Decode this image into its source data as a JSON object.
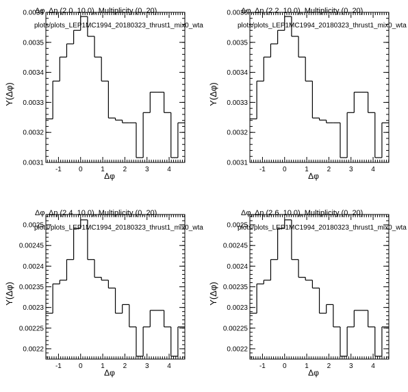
{
  "chart_data": [
    {
      "type": "step",
      "title": "Δφ, Δη (2.0, 10.0), Multiplicity (0, 20)",
      "subtitle": "plots/plots_LEP1MC1994_20180323_thrust1_mix0_wta",
      "xlabel": "Δφ",
      "ylabel": "Y(Δφ)",
      "xlim": [
        -1.57,
        4.71
      ],
      "ylim": [
        0.0031,
        0.0036
      ],
      "xticks": [
        -1,
        0,
        1,
        2,
        3,
        4
      ],
      "yticks": [
        0.0031,
        0.0032,
        0.0033,
        0.0034,
        0.0035,
        0.0036
      ],
      "ytick_labels": [
        "0.0031",
        "0.0032",
        "0.0033",
        "0.0034",
        "0.0035",
        "0.0036"
      ],
      "bin_edges": [
        -1.571,
        -1.257,
        -0.942,
        -0.628,
        -0.314,
        0.0,
        0.314,
        0.628,
        0.942,
        1.257,
        1.571,
        1.885,
        2.199,
        2.513,
        2.827,
        3.142,
        3.456,
        3.77,
        4.084,
        4.398,
        4.712
      ],
      "values": [
        0.003245,
        0.003371,
        0.003451,
        0.003495,
        0.00354,
        0.003586,
        0.00352,
        0.003451,
        0.003371,
        0.003248,
        0.003241,
        0.003232,
        0.003232,
        0.003116,
        0.003266,
        0.003334,
        0.003334,
        0.003266,
        0.003116,
        0.003232
      ]
    },
    {
      "type": "step",
      "title": "Δφ, Δη (2.2, 10.0), Multiplicity (0, 20)",
      "subtitle": "plots/plots_LEP1MC1994_20180323_thrust1_mix0_wta",
      "xlabel": "Δφ",
      "ylabel": "Y(Δφ)",
      "xlim": [
        -1.57,
        4.71
      ],
      "ylim": [
        0.0031,
        0.0036
      ],
      "xticks": [
        -1,
        0,
        1,
        2,
        3,
        4
      ],
      "yticks": [
        0.0031,
        0.0032,
        0.0033,
        0.0034,
        0.0035,
        0.0036
      ],
      "ytick_labels": [
        "0.0031",
        "0.0032",
        "0.0033",
        "0.0034",
        "0.0035",
        "0.0036"
      ],
      "bin_edges": [
        -1.571,
        -1.257,
        -0.942,
        -0.628,
        -0.314,
        0.0,
        0.314,
        0.628,
        0.942,
        1.257,
        1.571,
        1.885,
        2.199,
        2.513,
        2.827,
        3.142,
        3.456,
        3.77,
        4.084,
        4.398,
        4.712
      ],
      "values": [
        0.003245,
        0.003371,
        0.003451,
        0.003495,
        0.00354,
        0.003586,
        0.00352,
        0.003451,
        0.003371,
        0.003248,
        0.003241,
        0.003232,
        0.003232,
        0.003116,
        0.003266,
        0.003334,
        0.003334,
        0.003266,
        0.003116,
        0.003232
      ]
    },
    {
      "type": "step",
      "title": "Δφ, Δη (2.4, 10.0), Multiplicity (0, 20)",
      "subtitle": "plots/plots_LEP1MC1994_20180323_thrust1_mix0_wta",
      "xlabel": "Δφ",
      "ylabel": "Y(Δφ)",
      "xlim": [
        -1.57,
        4.71
      ],
      "ylim": [
        0.002175,
        0.002525
      ],
      "xticks": [
        -1,
        0,
        1,
        2,
        3,
        4
      ],
      "yticks": [
        0.0022,
        0.00225,
        0.0023,
        0.00235,
        0.0024,
        0.00245,
        0.0025
      ],
      "ytick_labels": [
        "0.0022",
        "0.00225",
        "0.0023",
        "0.00235",
        "0.0024",
        "0.00245",
        "0.0025"
      ],
      "bin_edges": [
        -1.571,
        -1.257,
        -0.942,
        -0.628,
        -0.314,
        0.0,
        0.314,
        0.628,
        0.942,
        1.257,
        1.571,
        1.885,
        2.199,
        2.513,
        2.827,
        3.142,
        3.456,
        3.77,
        4.084,
        4.398,
        4.712
      ],
      "values": [
        0.002286,
        0.002357,
        0.002366,
        0.002416,
        0.002491,
        0.002512,
        0.002416,
        0.002373,
        0.002366,
        0.002347,
        0.002286,
        0.002307,
        0.002253,
        0.002182,
        0.002253,
        0.002293,
        0.002293,
        0.002253,
        0.002182,
        0.002253
      ]
    },
    {
      "type": "step",
      "title": "Δφ, Δη (2.6, 10.0), Multiplicity (0, 20)",
      "subtitle": "plots/plots_LEP1MC1994_20180323_thrust1_mix0_wta",
      "xlabel": "Δφ",
      "ylabel": "Y(Δφ)",
      "xlim": [
        -1.57,
        4.71
      ],
      "ylim": [
        0.002175,
        0.002525
      ],
      "xticks": [
        -1,
        0,
        1,
        2,
        3,
        4
      ],
      "yticks": [
        0.0022,
        0.00225,
        0.0023,
        0.00235,
        0.0024,
        0.00245,
        0.0025
      ],
      "ytick_labels": [
        "0.0022",
        "0.00225",
        "0.0023",
        "0.00235",
        "0.0024",
        "0.00245",
        "0.0025"
      ],
      "bin_edges": [
        -1.571,
        -1.257,
        -0.942,
        -0.628,
        -0.314,
        0.0,
        0.314,
        0.628,
        0.942,
        1.257,
        1.571,
        1.885,
        2.199,
        2.513,
        2.827,
        3.142,
        3.456,
        3.77,
        4.084,
        4.398,
        4.712
      ],
      "values": [
        0.002286,
        0.002357,
        0.002366,
        0.002416,
        0.002491,
        0.002512,
        0.002416,
        0.002373,
        0.002366,
        0.002347,
        0.002286,
        0.002307,
        0.002253,
        0.002182,
        0.002253,
        0.002293,
        0.002293,
        0.002253,
        0.002182,
        0.002253
      ]
    }
  ]
}
